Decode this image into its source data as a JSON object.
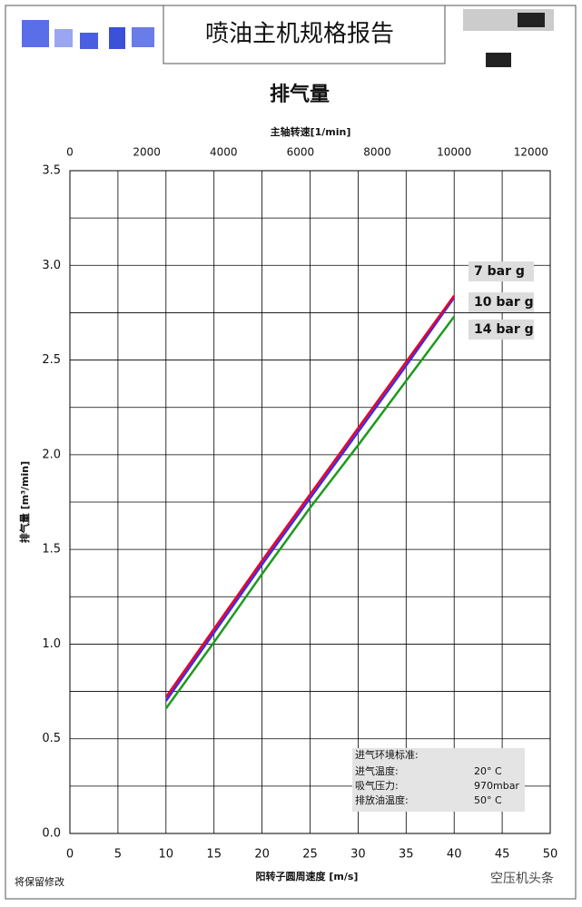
{
  "header": {
    "title": "喷油主机规格报告"
  },
  "chart_data": {
    "type": "line",
    "title": "排气量",
    "x_label": "阳转子圆周速度 [m/s]",
    "x2_label": "主轴转速[1/min]",
    "y_label": "排气量 [m³/min]",
    "x": [
      10,
      15,
      20,
      25,
      30,
      35,
      40
    ],
    "series": [
      {
        "name": "7 bar g",
        "color": "#e8002a",
        "values": [
          0.72,
          1.08,
          1.44,
          1.79,
          2.14,
          2.49,
          2.84
        ]
      },
      {
        "name": "10 bar g",
        "color": "#3a2ee0",
        "values": [
          0.7,
          1.06,
          1.42,
          1.77,
          2.12,
          2.47,
          2.83
        ]
      },
      {
        "name": "14 bar g",
        "color": "#1e9a1e",
        "values": [
          0.66,
          1.01,
          1.37,
          1.72,
          2.05,
          2.39,
          2.73
        ]
      }
    ],
    "xlim": [
      0,
      50
    ],
    "xticks": [
      0,
      5,
      10,
      15,
      20,
      25,
      30,
      35,
      40,
      45,
      50
    ],
    "x2lim": [
      0,
      12500
    ],
    "x2ticks": [
      0,
      2000,
      4000,
      6000,
      8000,
      10000,
      12000
    ],
    "ylim": [
      0,
      3.5
    ],
    "yticks": [
      {
        "value": 0,
        "label": "0.0"
      },
      0.5,
      {
        "value": 1,
        "label": "1.0"
      },
      1.5,
      {
        "value": 2,
        "label": "2.0"
      },
      2.5,
      {
        "value": 3,
        "label": "3.0"
      },
      3.5
    ],
    "yminor": [
      0.25,
      0.75,
      1.25,
      1.75,
      2.25,
      2.75,
      3.25
    ],
    "grid": true,
    "info": {
      "title": "进气环境标准:",
      "rows": [
        [
          "进气温度:",
          "20° C"
        ],
        [
          "吸气压力:",
          "970mbar"
        ],
        [
          "排放油温度:",
          "50° C"
        ]
      ]
    }
  },
  "footer": {
    "note": "将保留修改",
    "watermark": "空压机头条"
  }
}
